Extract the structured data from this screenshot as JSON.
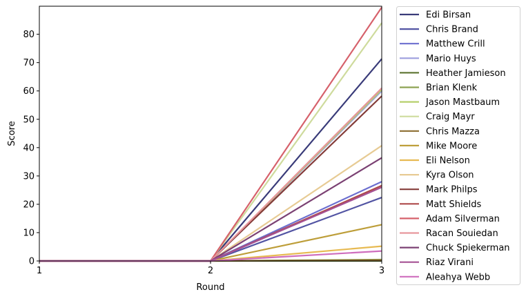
{
  "chart_data": {
    "type": "line",
    "title": "",
    "xlabel": "Round",
    "ylabel": "Score",
    "x": [
      1,
      2,
      3
    ],
    "x_ticks": [
      "1",
      "2",
      "3"
    ],
    "y_ticks": [
      "0",
      "10",
      "20",
      "30",
      "40",
      "50",
      "60",
      "70",
      "80"
    ],
    "xlim": [
      1,
      3
    ],
    "ylim": [
      0,
      89.9
    ],
    "grid": false,
    "legend_placement": "outside-right",
    "series": [
      {
        "name": "Edi Birsan",
        "color": "#393b79",
        "values": [
          0,
          0,
          71.3
        ]
      },
      {
        "name": "Chris Brand",
        "color": "#5254a3",
        "values": [
          0,
          0,
          22.4
        ]
      },
      {
        "name": "Matthew Crill",
        "color": "#6b6ecf",
        "values": [
          0,
          0,
          28
        ]
      },
      {
        "name": "Mario Huys",
        "color": "#9c9ede",
        "values": [
          0,
          0,
          60
        ]
      },
      {
        "name": "Heather Jamieson",
        "color": "#637939",
        "values": [
          0,
          0,
          0
        ]
      },
      {
        "name": "Brian Klenk",
        "color": "#8ca252",
        "values": [
          0,
          0,
          0.5
        ]
      },
      {
        "name": "Jason Mastbaum",
        "color": "#b5cf6b",
        "values": [
          0,
          0,
          60.5
        ]
      },
      {
        "name": "Craig Mayr",
        "color": "#cedb9c",
        "values": [
          0,
          0,
          84
        ]
      },
      {
        "name": "Chris Mazza",
        "color": "#8c6d31",
        "values": [
          0,
          0,
          0.3
        ]
      },
      {
        "name": "Mike Moore",
        "color": "#bd9e39",
        "values": [
          0,
          0,
          12.8
        ]
      },
      {
        "name": "Eli Nelson",
        "color": "#e7ba52",
        "values": [
          0,
          0,
          5.2
        ]
      },
      {
        "name": "Kyra Olson",
        "color": "#e7cb94",
        "values": [
          0,
          0,
          40.7
        ]
      },
      {
        "name": "Mark Philps",
        "color": "#843c39",
        "values": [
          0,
          0,
          58.2
        ]
      },
      {
        "name": "Matt Shields",
        "color": "#ad494a",
        "values": [
          0,
          0,
          26.6
        ]
      },
      {
        "name": "Adam Silverman",
        "color": "#d6616b",
        "values": [
          0,
          0,
          89.5
        ]
      },
      {
        "name": "Racan Souiedan",
        "color": "#e7969c",
        "values": [
          0,
          0,
          61
        ]
      },
      {
        "name": "Chuck Spiekerman",
        "color": "#7b4173",
        "values": [
          0,
          0,
          36.4
        ]
      },
      {
        "name": "Riaz Virani",
        "color": "#a55194",
        "values": [
          0,
          0,
          26
        ]
      },
      {
        "name": "Aleahya Webb",
        "color": "#ce6dbd",
        "values": [
          0,
          0,
          3.5
        ]
      }
    ]
  }
}
